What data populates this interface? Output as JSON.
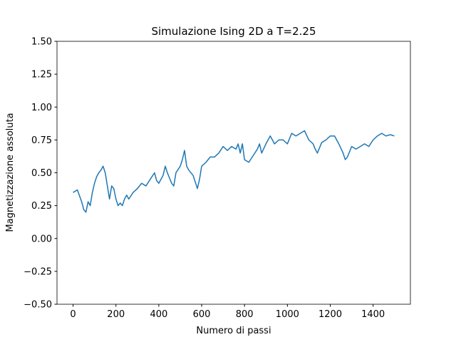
{
  "chart_data": {
    "type": "line",
    "title": "Simulazione Ising 2D a T=2.25",
    "xlabel": "Numero di passi",
    "ylabel": "Magnetizzazione assoluta",
    "xlim": [
      -75,
      1574
    ],
    "ylim": [
      -0.5,
      1.5
    ],
    "xticks": [
      0,
      200,
      400,
      600,
      800,
      1000,
      1200,
      1400
    ],
    "yticks": [
      {
        "value": -0.5,
        "label": "−0.50"
      },
      {
        "value": -0.25,
        "label": "−0.25"
      },
      {
        "value": 0,
        "label": "0.00"
      },
      {
        "value": 0.25,
        "label": "0.25"
      },
      {
        "value": 0.5,
        "label": "0.50"
      },
      {
        "value": 0.75,
        "label": "0.75"
      },
      {
        "value": 1,
        "label": "1.00"
      },
      {
        "value": 1.25,
        "label": "1.25"
      },
      {
        "value": 1.5,
        "label": "1.50"
      }
    ],
    "grid": false,
    "x": [
      0,
      20,
      40,
      50,
      60,
      70,
      80,
      90,
      100,
      110,
      120,
      130,
      140,
      150,
      160,
      170,
      180,
      190,
      200,
      210,
      220,
      230,
      240,
      250,
      260,
      280,
      300,
      320,
      340,
      360,
      380,
      390,
      400,
      420,
      430,
      440,
      460,
      470,
      480,
      500,
      510,
      520,
      530,
      540,
      560,
      570,
      580,
      590,
      600,
      620,
      640,
      660,
      680,
      700,
      720,
      740,
      760,
      770,
      780,
      790,
      800,
      820,
      840,
      860,
      870,
      880,
      900,
      920,
      940,
      960,
      980,
      1000,
      1020,
      1040,
      1060,
      1080,
      1100,
      1120,
      1130,
      1140,
      1160,
      1180,
      1200,
      1220,
      1240,
      1260,
      1270,
      1280,
      1300,
      1320,
      1340,
      1360,
      1380,
      1400,
      1420,
      1440,
      1460,
      1480,
      1499
    ],
    "series": [
      {
        "color": "#1f77b4",
        "values": [
          0.35,
          0.37,
          0.28,
          0.22,
          0.2,
          0.28,
          0.25,
          0.35,
          0.42,
          0.47,
          0.5,
          0.52,
          0.55,
          0.5,
          0.4,
          0.3,
          0.4,
          0.38,
          0.3,
          0.25,
          0.27,
          0.25,
          0.3,
          0.33,
          0.3,
          0.35,
          0.38,
          0.42,
          0.4,
          0.45,
          0.5,
          0.44,
          0.42,
          0.48,
          0.55,
          0.5,
          0.42,
          0.4,
          0.5,
          0.55,
          0.6,
          0.67,
          0.55,
          0.52,
          0.48,
          0.43,
          0.38,
          0.45,
          0.55,
          0.58,
          0.62,
          0.62,
          0.65,
          0.7,
          0.67,
          0.7,
          0.68,
          0.72,
          0.65,
          0.72,
          0.6,
          0.58,
          0.63,
          0.68,
          0.72,
          0.65,
          0.72,
          0.78,
          0.72,
          0.75,
          0.75,
          0.72,
          0.8,
          0.78,
          0.8,
          0.82,
          0.75,
          0.72,
          0.68,
          0.65,
          0.73,
          0.75,
          0.78,
          0.78,
          0.72,
          0.65,
          0.6,
          0.62,
          0.7,
          0.68,
          0.7,
          0.72,
          0.7,
          0.75,
          0.78,
          0.8,
          0.78,
          0.79,
          0.78
        ]
      }
    ]
  }
}
